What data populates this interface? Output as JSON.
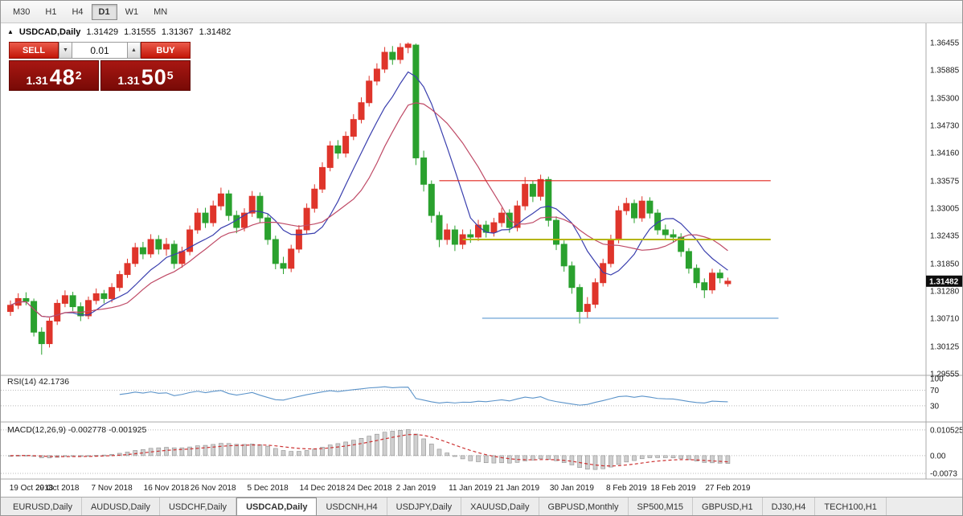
{
  "toolbar": {
    "timeframes": [
      "M30",
      "H1",
      "H4",
      "D1",
      "W1",
      "MN"
    ],
    "active": "D1"
  },
  "icons": {
    "expander": "▲",
    "arrow_up": "▲",
    "arrow_down": "▼"
  },
  "chart_header": {
    "symbol": "USDCAD,Daily",
    "open": "1.31429",
    "high": "1.31555",
    "low": "1.31367",
    "close": "1.31482"
  },
  "trade_panel": {
    "sell_label": "SELL",
    "buy_label": "BUY",
    "volume": "0.01",
    "bid": {
      "big": "1.31",
      "pips": "48",
      "sup": "2"
    },
    "ask": {
      "big": "1.31",
      "pips": "50",
      "sup": "5"
    }
  },
  "chart_data": {
    "type": "candlestick",
    "symbol": "USDCAD",
    "timeframe": "Daily",
    "ohlc_header": {
      "open": 1.31429,
      "high": 1.31555,
      "low": 1.31367,
      "close": 1.31482
    },
    "current_price": "1.31482",
    "price_range": {
      "max": 1.3682,
      "min": 1.2952
    },
    "price_axis_labels": [
      "1.36455",
      "1.35885",
      "1.35300",
      "1.34730",
      "1.34160",
      "1.33575",
      "1.33005",
      "1.32435",
      "1.31850",
      "1.31280",
      "1.30710",
      "1.30125",
      "1.29555"
    ],
    "colors": {
      "up": "#df352b",
      "down": "#2aa12e",
      "ma_fast": "#3a3fae",
      "ma_slow": "#bf4a66",
      "rsi": "#5b93c9",
      "macd_hist": "#cfcfcf",
      "macd_hist_edge": "#8f8f8f",
      "macd_signal": "#cc3333",
      "grid_dot": "#b9b9b9",
      "axis_text": "#1a1a1a",
      "separator": "#a8a8a8",
      "price_tag_bg": "#0d0d0d",
      "price_tag_text": "#ffffff"
    },
    "overlays": {
      "ma_fast_period": 8,
      "ma_slow_period": 13
    },
    "hlines": [
      {
        "name": "resistance-line",
        "price": 1.33575,
        "color": "#e2251d",
        "width": 1.2,
        "from_i": 55,
        "to_i": 97.5
      },
      {
        "name": "pivot-line",
        "price": 1.3235,
        "color": "#b5b50a",
        "width": 2,
        "from_i": 58,
        "to_i": 97.5
      },
      {
        "name": "support-line",
        "price": 1.3071,
        "color": "#5e9ad2",
        "width": 1.2,
        "from_i": 60.5,
        "to_i": 98.5
      }
    ],
    "indicators": [
      {
        "name": "RSI",
        "label": "RSI(14) 42.1736",
        "period": 14,
        "value": 42.1736,
        "axis_labels": [
          {
            "text": "100",
            "value": 100
          },
          {
            "text": "70",
            "value": 70
          },
          {
            "text": "30",
            "value": 30
          }
        ],
        "levels": [
          70,
          30
        ]
      },
      {
        "name": "MACD",
        "label": "MACD(12,26,9) -0.002778 -0.001925",
        "params": [
          12,
          26,
          9
        ],
        "macd": -0.002778,
        "signal": -0.001925,
        "axis_labels": [
          {
            "text": "0.010525",
            "value": 0.010525
          },
          {
            "text": "0.00",
            "value": 0
          },
          {
            "text": "-0.0073",
            "value": -0.0073
          }
        ]
      }
    ],
    "date_labels": [
      {
        "i": 0,
        "text": "19 Oct 2018"
      },
      {
        "i": 6,
        "text": "29 Oct 2018"
      },
      {
        "i": 13,
        "text": "7 Nov 2018"
      },
      {
        "i": 20,
        "text": "16 Nov 2018"
      },
      {
        "i": 26,
        "text": "26 Nov 2018"
      },
      {
        "i": 33,
        "text": "5 Dec 2018"
      },
      {
        "i": 40,
        "text": "14 Dec 2018"
      },
      {
        "i": 46,
        "text": "24 Dec 2018"
      },
      {
        "i": 52,
        "text": "2 Jan 2019"
      },
      {
        "i": 59,
        "text": "11 Jan 2019"
      },
      {
        "i": 65,
        "text": "21 Jan 2019"
      },
      {
        "i": 72,
        "text": "30 Jan 2019"
      },
      {
        "i": 79,
        "text": "8 Feb 2019"
      },
      {
        "i": 85,
        "text": "18 Feb 2019"
      },
      {
        "i": 92,
        "text": "27 Feb 2019"
      }
    ],
    "candles": [
      [
        1.3085,
        1.3108,
        1.3076,
        1.3098
      ],
      [
        1.3098,
        1.3123,
        1.309,
        1.3112
      ],
      [
        1.3112,
        1.3125,
        1.3098,
        1.3106
      ],
      [
        1.3106,
        1.3112,
        1.3033,
        1.3042
      ],
      [
        1.3042,
        1.3052,
        1.2995,
        1.3018
      ],
      [
        1.3018,
        1.3072,
        1.301,
        1.3065
      ],
      [
        1.3065,
        1.311,
        1.3057,
        1.3102
      ],
      [
        1.3102,
        1.3129,
        1.3094,
        1.3118
      ],
      [
        1.3118,
        1.3126,
        1.3086,
        1.3095
      ],
      [
        1.3095,
        1.3104,
        1.3065,
        1.3076
      ],
      [
        1.3076,
        1.3116,
        1.3069,
        1.3108
      ],
      [
        1.3108,
        1.3133,
        1.31,
        1.3122
      ],
      [
        1.3122,
        1.313,
        1.3102,
        1.3112
      ],
      [
        1.3112,
        1.3144,
        1.3104,
        1.3135
      ],
      [
        1.3135,
        1.317,
        1.3127,
        1.3162
      ],
      [
        1.3162,
        1.3195,
        1.3155,
        1.3185
      ],
      [
        1.3185,
        1.3228,
        1.3178,
        1.3218
      ],
      [
        1.3218,
        1.323,
        1.3194,
        1.3205
      ],
      [
        1.3205,
        1.3246,
        1.3197,
        1.3235
      ],
      [
        1.3235,
        1.3244,
        1.3204,
        1.3215
      ],
      [
        1.3215,
        1.3238,
        1.3201,
        1.3225
      ],
      [
        1.3225,
        1.3233,
        1.3174,
        1.3185
      ],
      [
        1.3185,
        1.322,
        1.3176,
        1.321
      ],
      [
        1.321,
        1.3264,
        1.3202,
        1.3255
      ],
      [
        1.3255,
        1.33,
        1.3247,
        1.329
      ],
      [
        1.329,
        1.3301,
        1.3259,
        1.327
      ],
      [
        1.327,
        1.3316,
        1.3262,
        1.3305
      ],
      [
        1.3305,
        1.3343,
        1.3296,
        1.333
      ],
      [
        1.333,
        1.3338,
        1.3274,
        1.3285
      ],
      [
        1.3285,
        1.3295,
        1.3248,
        1.326
      ],
      [
        1.326,
        1.33,
        1.3252,
        1.329
      ],
      [
        1.329,
        1.3336,
        1.3282,
        1.3325
      ],
      [
        1.3325,
        1.3333,
        1.3269,
        1.328
      ],
      [
        1.328,
        1.3288,
        1.3224,
        1.3235
      ],
      [
        1.3235,
        1.3243,
        1.3173,
        1.3185
      ],
      [
        1.3185,
        1.3199,
        1.3163,
        1.3175
      ],
      [
        1.3175,
        1.3224,
        1.3167,
        1.3215
      ],
      [
        1.3215,
        1.3265,
        1.3207,
        1.3255
      ],
      [
        1.3255,
        1.331,
        1.3247,
        1.33
      ],
      [
        1.33,
        1.335,
        1.3291,
        1.334
      ],
      [
        1.334,
        1.3396,
        1.3332,
        1.3385
      ],
      [
        1.3385,
        1.344,
        1.3377,
        1.343
      ],
      [
        1.343,
        1.3442,
        1.3403,
        1.3415
      ],
      [
        1.3415,
        1.346,
        1.3406,
        1.345
      ],
      [
        1.345,
        1.3496,
        1.3442,
        1.3485
      ],
      [
        1.3485,
        1.3531,
        1.3477,
        1.352
      ],
      [
        1.352,
        1.3576,
        1.3512,
        1.3565
      ],
      [
        1.3565,
        1.3602,
        1.3556,
        1.359
      ],
      [
        1.359,
        1.3636,
        1.3582,
        1.3625
      ],
      [
        1.3625,
        1.3638,
        1.3599,
        1.361
      ],
      [
        1.361,
        1.3644,
        1.3601,
        1.3635
      ],
      [
        1.3635,
        1.36455,
        1.3623,
        1.3642
      ],
      [
        1.364,
        1.3643,
        1.339,
        1.3405
      ],
      [
        1.3405,
        1.342,
        1.3335,
        1.335
      ],
      [
        1.335,
        1.3358,
        1.327,
        1.3285
      ],
      [
        1.3285,
        1.3293,
        1.3219,
        1.3235
      ],
      [
        1.3235,
        1.3268,
        1.3224,
        1.3255
      ],
      [
        1.3255,
        1.3264,
        1.3211,
        1.3225
      ],
      [
        1.3225,
        1.3256,
        1.3215,
        1.3245
      ],
      [
        1.3245,
        1.3256,
        1.3228,
        1.324
      ],
      [
        1.324,
        1.3276,
        1.3232,
        1.3265
      ],
      [
        1.3265,
        1.3274,
        1.3239,
        1.325
      ],
      [
        1.325,
        1.328,
        1.3241,
        1.327
      ],
      [
        1.327,
        1.3301,
        1.3261,
        1.329
      ],
      [
        1.329,
        1.3298,
        1.3249,
        1.326
      ],
      [
        1.326,
        1.3316,
        1.3252,
        1.3305
      ],
      [
        1.3305,
        1.3365,
        1.3296,
        1.335
      ],
      [
        1.335,
        1.3358,
        1.3313,
        1.3325
      ],
      [
        1.3325,
        1.337,
        1.3316,
        1.336
      ],
      [
        1.336,
        1.3366,
        1.3262,
        1.3275
      ],
      [
        1.3275,
        1.3283,
        1.3213,
        1.3225
      ],
      [
        1.3225,
        1.3233,
        1.3168,
        1.318
      ],
      [
        1.318,
        1.3189,
        1.3122,
        1.3135
      ],
      [
        1.3135,
        1.3142,
        1.306,
        1.3085
      ],
      [
        1.3085,
        1.3115,
        1.307,
        1.31
      ],
      [
        1.31,
        1.3154,
        1.3092,
        1.3145
      ],
      [
        1.3145,
        1.3195,
        1.3137,
        1.3185
      ],
      [
        1.3185,
        1.3245,
        1.3177,
        1.3235
      ],
      [
        1.3235,
        1.3305,
        1.3227,
        1.3295
      ],
      [
        1.3295,
        1.3322,
        1.3286,
        1.331
      ],
      [
        1.331,
        1.3318,
        1.3269,
        1.328
      ],
      [
        1.328,
        1.3325,
        1.3272,
        1.3315
      ],
      [
        1.3315,
        1.3323,
        1.3279,
        1.329
      ],
      [
        1.329,
        1.3298,
        1.3245,
        1.3255
      ],
      [
        1.3255,
        1.3266,
        1.3234,
        1.3245
      ],
      [
        1.3245,
        1.3256,
        1.3229,
        1.324
      ],
      [
        1.324,
        1.3248,
        1.3199,
        1.321
      ],
      [
        1.321,
        1.3217,
        1.3164,
        1.3175
      ],
      [
        1.3175,
        1.3183,
        1.3134,
        1.3145
      ],
      [
        1.3145,
        1.3154,
        1.3113,
        1.313
      ],
      [
        1.313,
        1.3174,
        1.3122,
        1.3165
      ],
      [
        1.3165,
        1.3173,
        1.3144,
        1.3155
      ],
      [
        1.31429,
        1.31555,
        1.31367,
        1.31482
      ]
    ]
  },
  "tabs": {
    "items": [
      "EURUSD,Daily",
      "AUDUSD,Daily",
      "USDCHF,Daily",
      "USDCAD,Daily",
      "USDCNH,H4",
      "USDJPY,Daily",
      "XAUUSD,Daily",
      "GBPUSD,Monthly",
      "SP500,M15",
      "GBPUSD,H1",
      "DJ30,H4",
      "TECH100,H1"
    ],
    "active": "USDCAD,Daily"
  }
}
